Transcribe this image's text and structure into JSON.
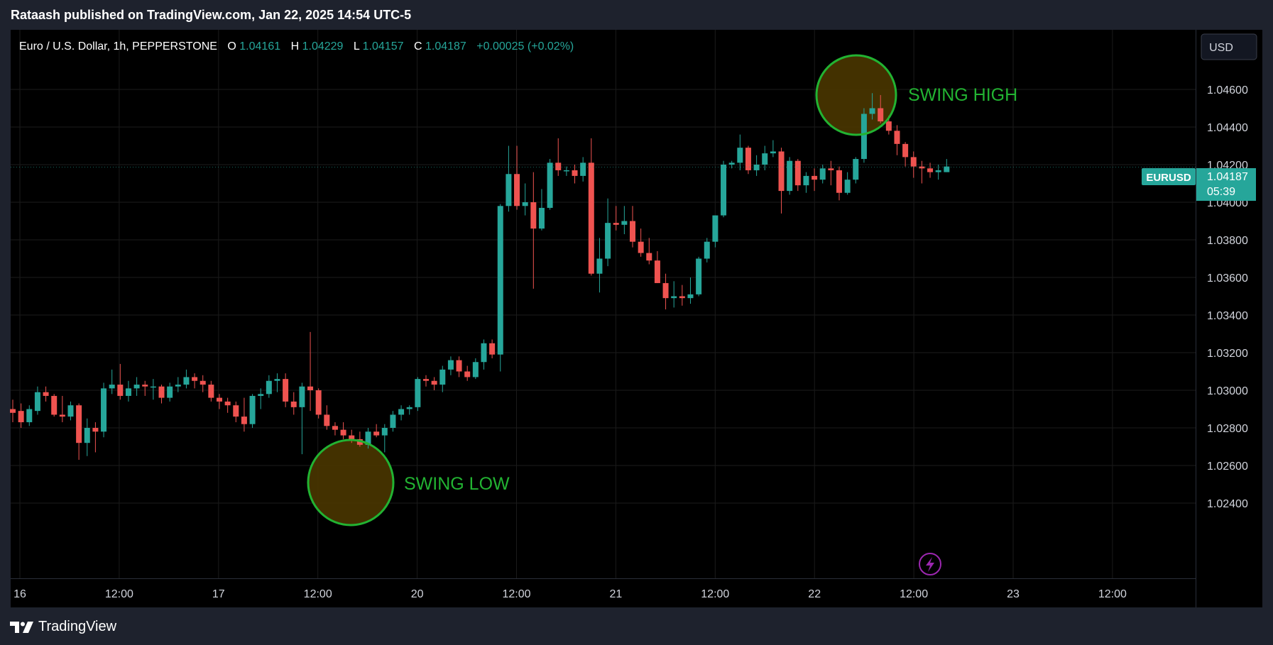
{
  "header": {
    "published": "Rataash published on TradingView.com, Jan 22, 2025 14:54 UTC-5"
  },
  "legend": {
    "symbol": "Euro / U.S. Dollar, 1h, PEPPERSTONE",
    "o_label": "O",
    "o_value": "1.04161",
    "h_label": "H",
    "h_value": "1.04229",
    "l_label": "L",
    "l_value": "1.04157",
    "c_label": "C",
    "c_value": "1.04187",
    "change": "+0.00025 (+0.02%)"
  },
  "currency_button": "USD",
  "price_tag": {
    "symbol": "EURUSD",
    "price": "1.04187",
    "countdown": "05:39"
  },
  "annotations": {
    "swing_high": "SWING HIGH",
    "swing_low": "SWING LOW"
  },
  "footer": {
    "brand": "TradingView"
  },
  "colors": {
    "up": "#26a69a",
    "down": "#ef5350",
    "grid": "#1b1b1b",
    "axis_text": "#d1d4dc",
    "annotation": "#22b332",
    "annotation_fill": "#4a3600",
    "price_tag": "#26a69a",
    "lightning": "#9c27b0"
  },
  "chart_data": {
    "type": "candlestick",
    "title": "Euro / U.S. Dollar, 1h, PEPPERSTONE",
    "ylim": [
      1.0226,
      1.0478
    ],
    "y_ticks": [
      "1.04600",
      "1.04400",
      "1.04200",
      "1.04000",
      "1.03800",
      "1.03600",
      "1.03400",
      "1.03200",
      "1.03000",
      "1.02800",
      "1.02600",
      "1.02400"
    ],
    "x_ticks": [
      "16",
      "12:00",
      "17",
      "12:00",
      "20",
      "12:00",
      "21",
      "12:00",
      "22",
      "12:00",
      "23",
      "12:00"
    ],
    "grid": true,
    "last_price": 1.04187,
    "candles": [
      {
        "o": 1.029,
        "h": 1.0295,
        "l": 1.0283,
        "c": 1.0288
      },
      {
        "o": 1.0289,
        "h": 1.0293,
        "l": 1.028,
        "c": 1.0283
      },
      {
        "o": 1.0283,
        "h": 1.0292,
        "l": 1.0281,
        "c": 1.029
      },
      {
        "o": 1.0289,
        "h": 1.0302,
        "l": 1.0287,
        "c": 1.0299
      },
      {
        "o": 1.0299,
        "h": 1.0302,
        "l": 1.0294,
        "c": 1.0297
      },
      {
        "o": 1.0297,
        "h": 1.0298,
        "l": 1.0286,
        "c": 1.0287
      },
      {
        "o": 1.0287,
        "h": 1.0297,
        "l": 1.0283,
        "c": 1.0286
      },
      {
        "o": 1.0286,
        "h": 1.0294,
        "l": 1.0284,
        "c": 1.0292
      },
      {
        "o": 1.0292,
        "h": 1.0293,
        "l": 1.0263,
        "c": 1.0272
      },
      {
        "o": 1.0272,
        "h": 1.0285,
        "l": 1.0265,
        "c": 1.028
      },
      {
        "o": 1.028,
        "h": 1.0283,
        "l": 1.0267,
        "c": 1.0278
      },
      {
        "o": 1.0278,
        "h": 1.0304,
        "l": 1.0275,
        "c": 1.0301
      },
      {
        "o": 1.0301,
        "h": 1.0311,
        "l": 1.0298,
        "c": 1.0303
      },
      {
        "o": 1.0303,
        "h": 1.0314,
        "l": 1.0295,
        "c": 1.0297
      },
      {
        "o": 1.0297,
        "h": 1.0305,
        "l": 1.0294,
        "c": 1.0301
      },
      {
        "o": 1.0301,
        "h": 1.0307,
        "l": 1.0297,
        "c": 1.0303
      },
      {
        "o": 1.0303,
        "h": 1.0305,
        "l": 1.0297,
        "c": 1.0302
      },
      {
        "o": 1.0302,
        "h": 1.0306,
        "l": 1.0295,
        "c": 1.0302
      },
      {
        "o": 1.0302,
        "h": 1.0303,
        "l": 1.0293,
        "c": 1.0296
      },
      {
        "o": 1.0296,
        "h": 1.0304,
        "l": 1.0294,
        "c": 1.0302
      },
      {
        "o": 1.0302,
        "h": 1.0307,
        "l": 1.0299,
        "c": 1.0303
      },
      {
        "o": 1.0303,
        "h": 1.0311,
        "l": 1.0301,
        "c": 1.0307
      },
      {
        "o": 1.0307,
        "h": 1.0309,
        "l": 1.0301,
        "c": 1.0305
      },
      {
        "o": 1.0305,
        "h": 1.0308,
        "l": 1.0299,
        "c": 1.0303
      },
      {
        "o": 1.0303,
        "h": 1.0305,
        "l": 1.0294,
        "c": 1.0296
      },
      {
        "o": 1.0296,
        "h": 1.0298,
        "l": 1.029,
        "c": 1.0294
      },
      {
        "o": 1.0294,
        "h": 1.0296,
        "l": 1.0288,
        "c": 1.0292
      },
      {
        "o": 1.0292,
        "h": 1.0294,
        "l": 1.0283,
        "c": 1.0286
      },
      {
        "o": 1.0286,
        "h": 1.0296,
        "l": 1.0278,
        "c": 1.0282
      },
      {
        "o": 1.0282,
        "h": 1.0298,
        "l": 1.028,
        "c": 1.0297
      },
      {
        "o": 1.0297,
        "h": 1.0301,
        "l": 1.029,
        "c": 1.0298
      },
      {
        "o": 1.0298,
        "h": 1.0308,
        "l": 1.0296,
        "c": 1.0305
      },
      {
        "o": 1.0305,
        "h": 1.0309,
        "l": 1.0299,
        "c": 1.0306
      },
      {
        "o": 1.0306,
        "h": 1.0309,
        "l": 1.0291,
        "c": 1.0294
      },
      {
        "o": 1.0294,
        "h": 1.0299,
        "l": 1.0287,
        "c": 1.0291
      },
      {
        "o": 1.0291,
        "h": 1.0304,
        "l": 1.0266,
        "c": 1.0302
      },
      {
        "o": 1.0302,
        "h": 1.0331,
        "l": 1.0289,
        "c": 1.03
      },
      {
        "o": 1.03,
        "h": 1.0301,
        "l": 1.0285,
        "c": 1.0287
      },
      {
        "o": 1.0287,
        "h": 1.0292,
        "l": 1.0279,
        "c": 1.0281
      },
      {
        "o": 1.0281,
        "h": 1.0283,
        "l": 1.0276,
        "c": 1.0279
      },
      {
        "o": 1.0279,
        "h": 1.0283,
        "l": 1.0274,
        "c": 1.0276
      },
      {
        "o": 1.0276,
        "h": 1.0279,
        "l": 1.0272,
        "c": 1.0274
      },
      {
        "o": 1.0274,
        "h": 1.0278,
        "l": 1.027,
        "c": 1.0271
      },
      {
        "o": 1.0271,
        "h": 1.028,
        "l": 1.0269,
        "c": 1.0278
      },
      {
        "o": 1.0278,
        "h": 1.0282,
        "l": 1.0275,
        "c": 1.0276
      },
      {
        "o": 1.0276,
        "h": 1.0282,
        "l": 1.0267,
        "c": 1.028
      },
      {
        "o": 1.028,
        "h": 1.0289,
        "l": 1.0278,
        "c": 1.0287
      },
      {
        "o": 1.0287,
        "h": 1.0292,
        "l": 1.0284,
        "c": 1.029
      },
      {
        "o": 1.029,
        "h": 1.0292,
        "l": 1.0287,
        "c": 1.0291
      },
      {
        "o": 1.0291,
        "h": 1.0307,
        "l": 1.0289,
        "c": 1.0306
      },
      {
        "o": 1.0306,
        "h": 1.0308,
        "l": 1.0302,
        "c": 1.0305
      },
      {
        "o": 1.0305,
        "h": 1.0307,
        "l": 1.03,
        "c": 1.0303
      },
      {
        "o": 1.0303,
        "h": 1.0313,
        "l": 1.0299,
        "c": 1.0311
      },
      {
        "o": 1.0311,
        "h": 1.0318,
        "l": 1.0308,
        "c": 1.0316
      },
      {
        "o": 1.0316,
        "h": 1.0318,
        "l": 1.0307,
        "c": 1.031
      },
      {
        "o": 1.031,
        "h": 1.0313,
        "l": 1.0305,
        "c": 1.0307
      },
      {
        "o": 1.0307,
        "h": 1.0317,
        "l": 1.0306,
        "c": 1.0315
      },
      {
        "o": 1.0315,
        "h": 1.0327,
        "l": 1.0311,
        "c": 1.0325
      },
      {
        "o": 1.0325,
        "h": 1.0327,
        "l": 1.0317,
        "c": 1.0319
      },
      {
        "o": 1.0319,
        "h": 1.0399,
        "l": 1.031,
        "c": 1.0398
      },
      {
        "o": 1.0398,
        "h": 1.043,
        "l": 1.0395,
        "c": 1.0415
      },
      {
        "o": 1.0415,
        "h": 1.043,
        "l": 1.0396,
        "c": 1.0398
      },
      {
        "o": 1.0398,
        "h": 1.041,
        "l": 1.0393,
        "c": 1.04
      },
      {
        "o": 1.04,
        "h": 1.0416,
        "l": 1.0354,
        "c": 1.0386
      },
      {
        "o": 1.0386,
        "h": 1.0407,
        "l": 1.0385,
        "c": 1.0397
      },
      {
        "o": 1.0397,
        "h": 1.0423,
        "l": 1.0396,
        "c": 1.0421
      },
      {
        "o": 1.0421,
        "h": 1.0434,
        "l": 1.0414,
        "c": 1.0417
      },
      {
        "o": 1.0417,
        "h": 1.0419,
        "l": 1.0414,
        "c": 1.0417
      },
      {
        "o": 1.0417,
        "h": 1.042,
        "l": 1.041,
        "c": 1.0414
      },
      {
        "o": 1.0414,
        "h": 1.0424,
        "l": 1.0411,
        "c": 1.0421
      },
      {
        "o": 1.0421,
        "h": 1.0434,
        "l": 1.0361,
        "c": 1.0362
      },
      {
        "o": 1.0362,
        "h": 1.0381,
        "l": 1.0352,
        "c": 1.037
      },
      {
        "o": 1.037,
        "h": 1.0402,
        "l": 1.0366,
        "c": 1.0389
      },
      {
        "o": 1.0389,
        "h": 1.0398,
        "l": 1.0385,
        "c": 1.0388
      },
      {
        "o": 1.0388,
        "h": 1.0398,
        "l": 1.0383,
        "c": 1.039
      },
      {
        "o": 1.039,
        "h": 1.0398,
        "l": 1.0376,
        "c": 1.0379
      },
      {
        "o": 1.0379,
        "h": 1.0386,
        "l": 1.0371,
        "c": 1.0373
      },
      {
        "o": 1.0373,
        "h": 1.0381,
        "l": 1.0367,
        "c": 1.0369
      },
      {
        "o": 1.0369,
        "h": 1.0374,
        "l": 1.0357,
        "c": 1.0357
      },
      {
        "o": 1.0357,
        "h": 1.0362,
        "l": 1.0343,
        "c": 1.0349
      },
      {
        "o": 1.0349,
        "h": 1.0358,
        "l": 1.0344,
        "c": 1.035
      },
      {
        "o": 1.035,
        "h": 1.0356,
        "l": 1.0345,
        "c": 1.0349
      },
      {
        "o": 1.0349,
        "h": 1.036,
        "l": 1.0346,
        "c": 1.0351
      },
      {
        "o": 1.0351,
        "h": 1.0371,
        "l": 1.035,
        "c": 1.037
      },
      {
        "o": 1.037,
        "h": 1.0381,
        "l": 1.0368,
        "c": 1.0379
      },
      {
        "o": 1.0379,
        "h": 1.0393,
        "l": 1.0376,
        "c": 1.0393
      },
      {
        "o": 1.0393,
        "h": 1.0422,
        "l": 1.0392,
        "c": 1.042
      },
      {
        "o": 1.042,
        "h": 1.0422,
        "l": 1.0418,
        "c": 1.0421
      },
      {
        "o": 1.0421,
        "h": 1.0436,
        "l": 1.0417,
        "c": 1.0429
      },
      {
        "o": 1.0429,
        "h": 1.043,
        "l": 1.0415,
        "c": 1.0417
      },
      {
        "o": 1.0417,
        "h": 1.0425,
        "l": 1.0414,
        "c": 1.042
      },
      {
        "o": 1.042,
        "h": 1.043,
        "l": 1.0417,
        "c": 1.0426
      },
      {
        "o": 1.0426,
        "h": 1.0433,
        "l": 1.0424,
        "c": 1.0427
      },
      {
        "o": 1.0427,
        "h": 1.0429,
        "l": 1.0394,
        "c": 1.0406
      },
      {
        "o": 1.0406,
        "h": 1.0424,
        "l": 1.0404,
        "c": 1.0422
      },
      {
        "o": 1.0422,
        "h": 1.0423,
        "l": 1.0406,
        "c": 1.0409
      },
      {
        "o": 1.0409,
        "h": 1.0416,
        "l": 1.0405,
        "c": 1.0414
      },
      {
        "o": 1.0414,
        "h": 1.0418,
        "l": 1.0406,
        "c": 1.0412
      },
      {
        "o": 1.0412,
        "h": 1.042,
        "l": 1.041,
        "c": 1.0418
      },
      {
        "o": 1.0418,
        "h": 1.0422,
        "l": 1.0409,
        "c": 1.0417
      },
      {
        "o": 1.0417,
        "h": 1.0419,
        "l": 1.0401,
        "c": 1.0405
      },
      {
        "o": 1.0405,
        "h": 1.0416,
        "l": 1.0404,
        "c": 1.0412
      },
      {
        "o": 1.0412,
        "h": 1.0424,
        "l": 1.041,
        "c": 1.0423
      },
      {
        "o": 1.0423,
        "h": 1.045,
        "l": 1.0421,
        "c": 1.0447
      },
      {
        "o": 1.0447,
        "h": 1.0458,
        "l": 1.0444,
        "c": 1.045
      },
      {
        "o": 1.045,
        "h": 1.0457,
        "l": 1.0442,
        "c": 1.0443
      },
      {
        "o": 1.0443,
        "h": 1.0446,
        "l": 1.0436,
        "c": 1.0438
      },
      {
        "o": 1.0438,
        "h": 1.0441,
        "l": 1.0425,
        "c": 1.0431
      },
      {
        "o": 1.0431,
        "h": 1.0432,
        "l": 1.0419,
        "c": 1.0424
      },
      {
        "o": 1.0424,
        "h": 1.0427,
        "l": 1.0413,
        "c": 1.0419
      },
      {
        "o": 1.0419,
        "h": 1.0422,
        "l": 1.041,
        "c": 1.0418
      },
      {
        "o": 1.0418,
        "h": 1.0421,
        "l": 1.0413,
        "c": 1.0416
      },
      {
        "o": 1.0416,
        "h": 1.042,
        "l": 1.0412,
        "c": 1.0417
      },
      {
        "o": 1.0416,
        "h": 1.0423,
        "l": 1.0416,
        "c": 1.0419
      }
    ]
  }
}
